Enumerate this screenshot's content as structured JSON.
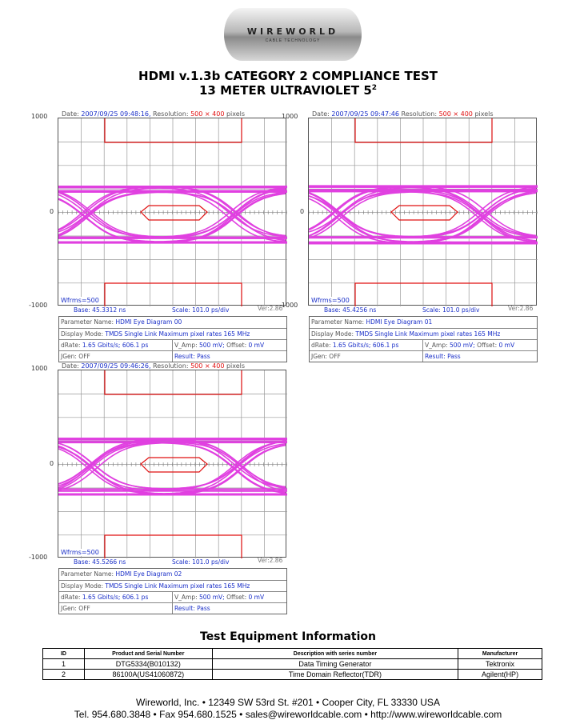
{
  "logo": {
    "brand": "WIREWORLD",
    "tagline": "CABLE TECHNOLOGY"
  },
  "title": {
    "line1": "HDMI v.1.3b CATEGORY 2 COMPLIANCE TEST",
    "line2": "13 METER ULTRAVIOLET 5",
    "line2_sup": "2"
  },
  "colors": {
    "trace": "#e040e0",
    "mask": "#e01010",
    "value_text": "#1a2fc8"
  },
  "chart_data": [
    {
      "type": "eye-diagram",
      "y_ticks": [
        "1000",
        "0",
        "-1000"
      ],
      "grid": "10x8",
      "date_label": "Date:",
      "date": "2007/09/25 09:48:16,",
      "res_label": "Resolution:",
      "resolution": "500 × 400",
      "res_unit": "pixels",
      "wfrms": "Wfrms=500",
      "base": "Base: 45.3312 ns",
      "scale": "Scale: 101.0 ps/div",
      "ver": "Ver:2.86",
      "info": {
        "param_label": "Parameter Name:",
        "param": "HDMI Eye Diagram 00",
        "mode_label": "Display Mode:",
        "mode": "TMDS Single Link Maximum pixel rates 165 MHz",
        "rate_label": "dRate:",
        "rate": "1.65 Gbits/s; 606.1 ps",
        "vamp_label": "V_Amp:",
        "vamp": "500 mV;",
        "offset_label": "Offset:",
        "offset": "0 mV",
        "jgen": "JGen: OFF",
        "result": "Result: Pass"
      }
    },
    {
      "type": "eye-diagram",
      "y_ticks": [
        "1000",
        "0",
        "-1000"
      ],
      "grid": "10x8",
      "date_label": "Date:",
      "date": "2007/09/25 09:47:46",
      "res_label": "Resolution:",
      "resolution": "500 × 400",
      "res_unit": "pixels",
      "wfrms": "Wfrms=500",
      "base": "Base: 45.4256 ns",
      "scale": "Scale: 101.0 ps/div",
      "ver": "Ver:2.86",
      "info": {
        "param_label": "Parameter Name:",
        "param": "HDMI Eye Diagram 01",
        "mode_label": "Display Mode:",
        "mode": "TMDS Single Link Maximum pixel rates 165 MHz",
        "rate_label": "dRate:",
        "rate": "1.65 Gbits/s; 606.1 ps",
        "vamp_label": "V_Amp:",
        "vamp": "500 mV;",
        "offset_label": "Offset:",
        "offset": "0 mV",
        "jgen": "JGen: OFF",
        "result": "Result: Pass"
      }
    },
    {
      "type": "eye-diagram",
      "y_ticks": [
        "1000",
        "0",
        "-1000"
      ],
      "grid": "10x8",
      "date_label": "Date:",
      "date": "2007/09/25 09:46:26,",
      "res_label": "Resolution:",
      "resolution": "500 × 400",
      "res_unit": "pixels",
      "wfrms": "Wfrms=500",
      "base": "Base: 45.5266 ns",
      "scale": "Scale: 101.0 ps/div",
      "ver": "Ver:2.86",
      "info": {
        "param_label": "Parameter Name:",
        "param": "HDMI Eye Diagram 02",
        "mode_label": "Display Mode:",
        "mode": "TMDS Single Link Maximum pixel rates 165 MHz",
        "rate_label": "dRate:",
        "rate": "1.65 Gbits/s; 606.1 ps",
        "vamp_label": "V_Amp:",
        "vamp": "500 mV;",
        "offset_label": "Offset:",
        "offset": "0 mV",
        "jgen": "JGen: OFF",
        "result": "Result: Pass"
      }
    }
  ],
  "equipment": {
    "heading": "Test Equipment Information",
    "columns": [
      "ID",
      "Product and Serial Number",
      "Description with series number",
      "Manufacturer"
    ],
    "rows": [
      [
        "1",
        "DTG5334(B010132)",
        "Data Timing Generator",
        "Tektronix"
      ],
      [
        "2",
        "86100A(US41060872)",
        "Time Domain Reflector(TDR)",
        "Agilent(HP)"
      ]
    ]
  },
  "footer": {
    "line1": "Wireworld, Inc. • 12349 SW 53rd St. #201 • Cooper City, FL 33330 USA",
    "line2": "Tel. 954.680.3848 • Fax 954.680.1525 • sales@wireworldcable.com • http://www.wireworldcable.com"
  }
}
